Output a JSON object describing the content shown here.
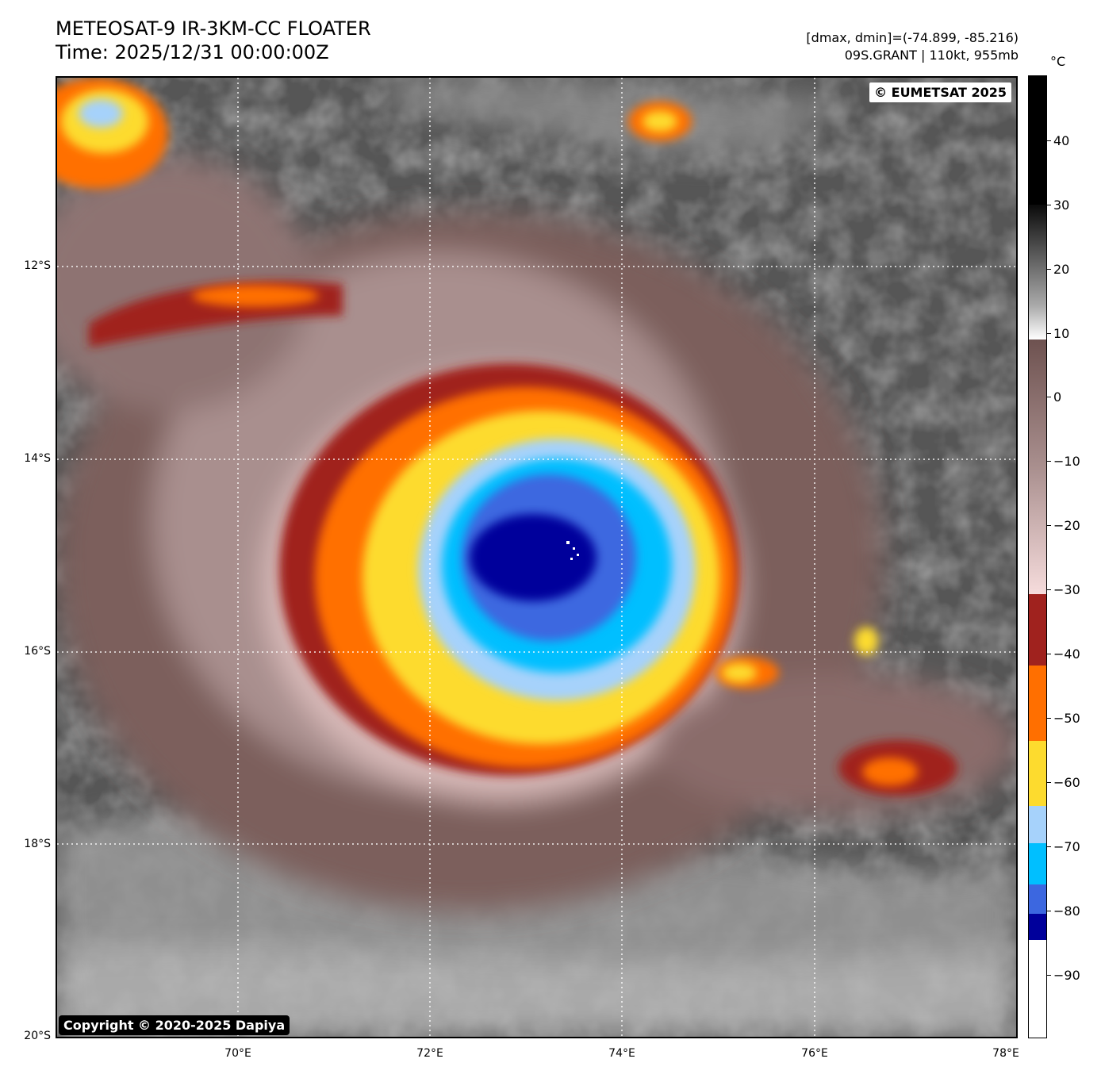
{
  "header": {
    "title_line1": "METEOSAT-9 IR-3KM-CC FLOATER",
    "title_line2": "Time: 2025/12/31 00:00:00Z",
    "range_line": "[dmax, dmin]=(-74.899, -85.216)",
    "storm_line": "09S.GRANT | 110kt, 955mb"
  },
  "map": {
    "credit_top": "© EUMETSAT 2025",
    "credit_bottom": "Copyright © 2020-2025 Dapiya",
    "lat_labels": [
      "12°S",
      "14°S",
      "16°S",
      "18°S",
      "20°S"
    ],
    "lon_labels": [
      "70°E",
      "72°E",
      "74°E",
      "76°E",
      "78°E"
    ],
    "lon_range": [
      68.1,
      78.1
    ],
    "lat_range": [
      -20.0,
      -10.0
    ],
    "storm_center": {
      "lon": 73.0,
      "lat": -15.1
    }
  },
  "colorbar": {
    "unit": "°C",
    "tick_labels": [
      "40",
      "30",
      "20",
      "10",
      "0",
      "−10",
      "−20",
      "−30",
      "−40",
      "−50",
      "−60",
      "−70",
      "−80",
      "−90"
    ],
    "range": [
      -100,
      50
    ],
    "stops": [
      {
        "from": 50,
        "to": 30,
        "color": "#000000"
      },
      {
        "from": 30,
        "to": 9,
        "color": "gradient-gray"
      },
      {
        "from": 9,
        "to": -31,
        "color": "gradient-brown-pink"
      },
      {
        "from": -31,
        "to": -42,
        "color": "#a0221e"
      },
      {
        "from": -42,
        "to": -53,
        "color": "#ff6f00"
      },
      {
        "from": -53,
        "to": -63,
        "color": "#fddb2e"
      },
      {
        "from": -63,
        "to": -69,
        "color": "#a6d2fb"
      },
      {
        "from": -69,
        "to": -75,
        "color": "#00bfff"
      },
      {
        "from": -75,
        "to": -80,
        "color": "#3c67e0"
      },
      {
        "from": -80,
        "to": -84,
        "color": "#00009b"
      },
      {
        "from": -84,
        "to": -100,
        "color": "#ffffff"
      }
    ]
  }
}
